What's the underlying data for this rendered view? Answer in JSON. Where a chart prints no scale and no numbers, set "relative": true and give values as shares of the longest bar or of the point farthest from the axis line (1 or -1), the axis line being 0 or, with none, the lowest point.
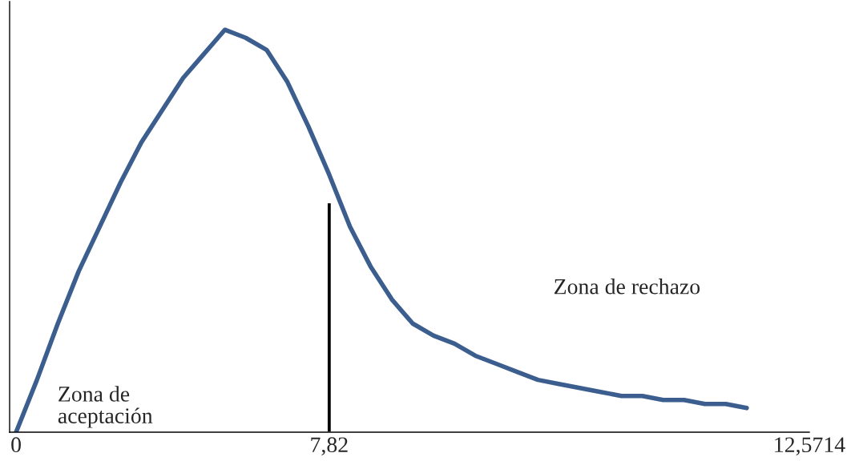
{
  "chart_data": {
    "type": "line",
    "relative": true,
    "grid": false,
    "legend": false,
    "categories": [
      "0",
      null,
      null,
      null,
      null,
      null,
      null,
      null,
      null,
      null,
      null,
      null,
      null,
      null,
      null,
      "7,82",
      null,
      null,
      null,
      null,
      null,
      null,
      null,
      null,
      null,
      null,
      null,
      null,
      null,
      null,
      null,
      null,
      null,
      null,
      null,
      null,
      null,
      null,
      "12,5714"
    ],
    "series": [
      {
        "color": "#3c5e8f",
        "values": [
          0,
          0.13,
          0.27,
          0.4,
          0.51,
          0.62,
          0.72,
          0.8,
          0.88,
          0.94,
          1,
          0.98,
          0.95,
          0.87,
          0.76,
          0.64,
          0.51,
          0.41,
          0.33,
          0.27,
          0.24,
          0.22,
          0.19,
          0.17,
          0.15,
          0.13,
          0.12,
          0.11,
          0.1,
          0.09,
          0.09,
          0.08,
          0.08,
          0.07,
          0.07,
          0.06,
          null,
          null,
          null
        ]
      },
      {
        "type": "bar",
        "color": "#000000",
        "values": [
          null,
          null,
          null,
          null,
          null,
          null,
          null,
          null,
          null,
          null,
          null,
          null,
          null,
          null,
          null,
          0.57,
          null,
          null,
          null,
          null,
          null,
          null,
          null,
          null,
          null,
          null,
          null,
          null,
          null,
          null,
          null,
          null,
          null,
          null,
          null,
          null,
          null,
          null,
          null
        ]
      }
    ],
    "annotations": [
      "Zona de\naceptación",
      "Zona de rechazo"
    ]
  }
}
